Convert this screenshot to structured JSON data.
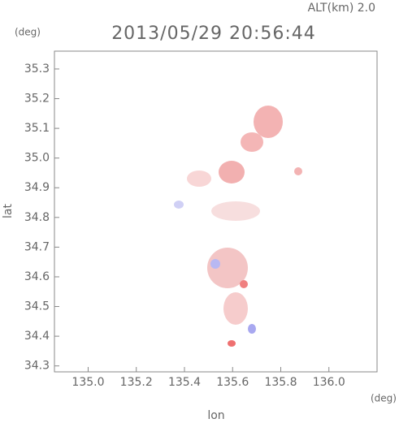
{
  "chart_data": {
    "type": "map",
    "title": "2013/05/29 20:56:44",
    "subtitle": "ALT(km) 2.0",
    "x_label": "lon",
    "y_label": "lat",
    "x_unit": "(deg)",
    "y_unit": "(deg)",
    "xlim": [
      134.86,
      136.2
    ],
    "xticks": [
      {
        "value": 135,
        "label": "135.0"
      },
      135.2,
      135.4,
      135.6,
      135.8,
      {
        "value": 136,
        "label": "136.0"
      }
    ],
    "ylim": [
      34.28,
      35.36
    ],
    "yticks": [
      34.3,
      34.4,
      34.5,
      34.6,
      34.7,
      34.8,
      34.9,
      {
        "value": 35,
        "label": "35.0"
      },
      35.1,
      35.2,
      35.3
    ]
  }
}
